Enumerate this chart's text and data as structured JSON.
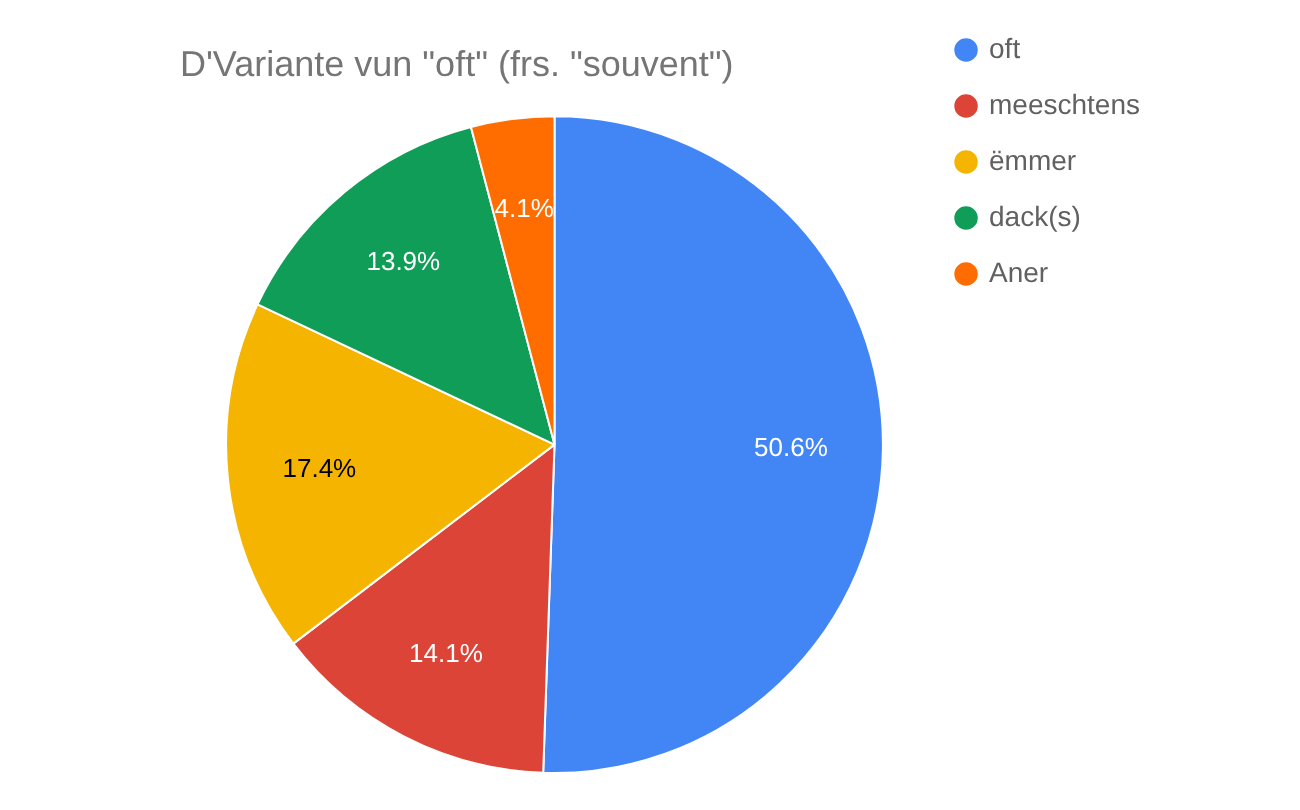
{
  "chart_data": {
    "type": "pie",
    "title": "D'Variante vun \"oft\" (frs. \"souvent\")",
    "categories": [
      "oft",
      "meeschtens",
      "ëmmer",
      "dack(s)",
      "Aner"
    ],
    "values": [
      50.6,
      14.1,
      17.4,
      13.9,
      4.1
    ],
    "colors": [
      "#4285f4",
      "#db4437",
      "#f4b400",
      "#0f9d58",
      "#ff6d00"
    ],
    "value_labels": [
      "50.6%",
      "14.1%",
      "17.4%",
      "13.9%",
      "4.1%"
    ],
    "legend": "top right"
  }
}
